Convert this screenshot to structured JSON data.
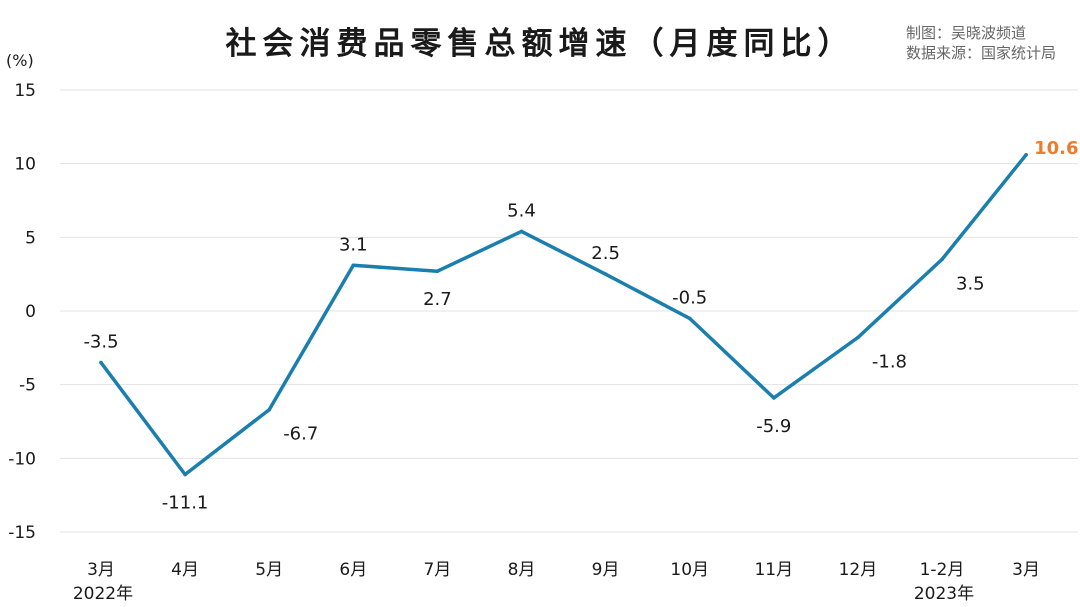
{
  "chart_data": {
    "type": "line",
    "title": "社会消费品零售总额增速（月度同比）",
    "credits": [
      "制图：吴晓波频道",
      "数据来源：国家统计局"
    ],
    "ylabel": "(%)",
    "ylim": [
      -15,
      15
    ],
    "yticks": [
      15,
      10,
      5,
      0,
      -5,
      -10,
      -15
    ],
    "grid": true,
    "categories": [
      "3月",
      "4月",
      "5月",
      "6月",
      "7月",
      "8月",
      "9月",
      "10月",
      "11月",
      "12月",
      "1-2月",
      "3月"
    ],
    "year_labels": [
      {
        "text": "2022年",
        "category_index": 0
      },
      {
        "text": "2023年",
        "category_index": 10
      }
    ],
    "series": [
      {
        "values": [
          -3.5,
          -11.1,
          -6.7,
          3.1,
          2.7,
          5.4,
          2.5,
          -0.5,
          -5.9,
          -1.8,
          3.5,
          10.6
        ],
        "data_labels": [
          "-3.5",
          "-11.1",
          "-6.7",
          "3.1",
          "2.7",
          "5.4",
          "2.5",
          "-0.5",
          "-5.9",
          "-1.8",
          "3.5",
          "10.6"
        ],
        "color": "#1a7fae"
      }
    ],
    "highlight_color": "#ee7c2c",
    "grid_color": "#e3e3e3"
  }
}
